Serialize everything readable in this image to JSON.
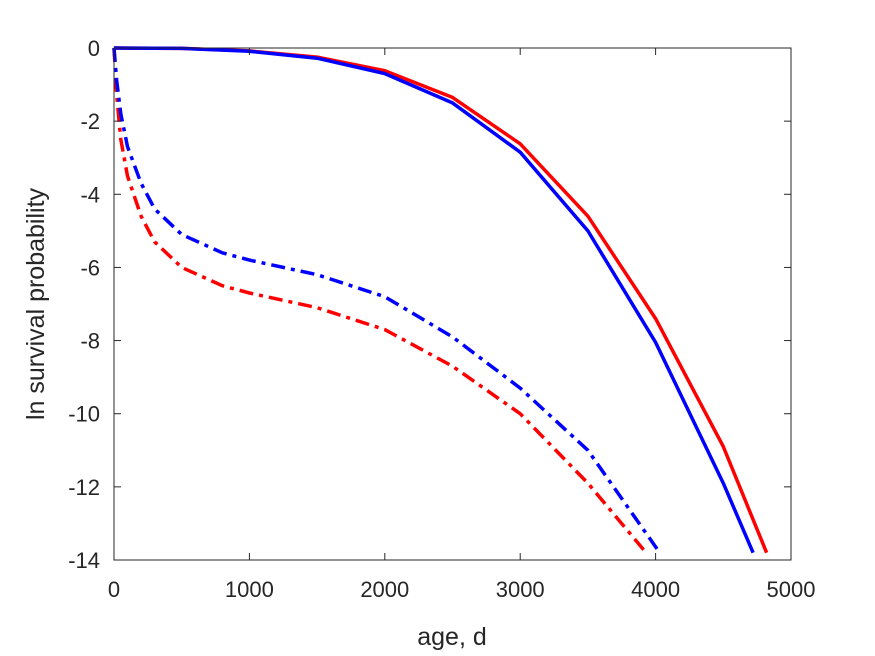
{
  "chart_data": {
    "type": "line",
    "xlabel": "age, d",
    "ylabel": "ln survival probability",
    "xlim": [
      0,
      5000
    ],
    "ylim": [
      -14,
      0
    ],
    "xticks": [
      0,
      1000,
      2000,
      3000,
      4000,
      5000
    ],
    "yticks": [
      0,
      -2,
      -4,
      -6,
      -8,
      -10,
      -12,
      -14
    ],
    "grid": false,
    "series": [
      {
        "color": "#ff0000",
        "style": "solid",
        "x": [
          0,
          500,
          1000,
          1500,
          2000,
          2500,
          3000,
          3500,
          4000,
          4500,
          4820
        ],
        "y": [
          0,
          -0.01,
          -0.08,
          -0.25,
          -0.62,
          -1.35,
          -2.62,
          -4.6,
          -7.4,
          -10.9,
          -13.8
        ]
      },
      {
        "color": "#0000ff",
        "style": "solid",
        "x": [
          0,
          500,
          1000,
          1500,
          2000,
          2500,
          3000,
          3500,
          4000,
          4500,
          4720
        ],
        "y": [
          0,
          -0.01,
          -0.09,
          -0.28,
          -0.7,
          -1.5,
          -2.85,
          -5.0,
          -8.05,
          -11.9,
          -13.8
        ]
      },
      {
        "color": "#ff0000",
        "style": "dashdot",
        "x": [
          0,
          20,
          50,
          100,
          200,
          300,
          500,
          800,
          1000,
          1500,
          2000,
          2500,
          3000,
          3500,
          3930
        ],
        "y": [
          0,
          -1.3,
          -2.5,
          -3.5,
          -4.6,
          -5.3,
          -6.0,
          -6.5,
          -6.7,
          -7.1,
          -7.7,
          -8.7,
          -10.0,
          -11.9,
          -13.8
        ]
      },
      {
        "color": "#0000ff",
        "style": "dashdot",
        "x": [
          0,
          20,
          50,
          100,
          200,
          300,
          500,
          800,
          1000,
          1500,
          2000,
          2500,
          3000,
          3500,
          4030
        ],
        "y": [
          0,
          -0.9,
          -1.8,
          -2.7,
          -3.7,
          -4.4,
          -5.1,
          -5.6,
          -5.8,
          -6.2,
          -6.8,
          -7.9,
          -9.3,
          -11.0,
          -13.8
        ]
      }
    ]
  }
}
